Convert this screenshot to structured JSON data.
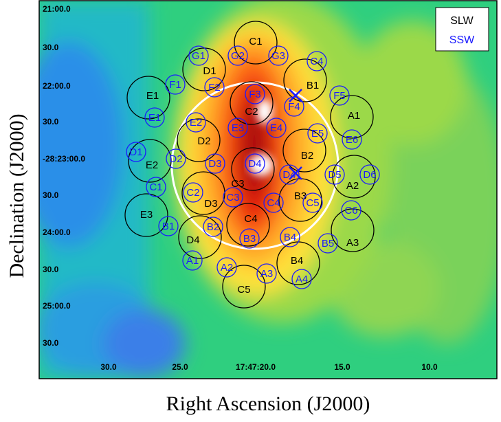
{
  "chart_data": {
    "type": "heatmap",
    "xlabel": "Right Ascension (J2000)",
    "ylabel": "Declination (J2000)",
    "x_ticks": [
      "30.0",
      "25.0",
      "17:47:20.0",
      "15.0",
      "10.0"
    ],
    "y_ticks": [
      "21:00.0",
      "30.0",
      "22:00.0",
      "30.0",
      "-28:23:00.0",
      "30.0",
      "24:00.0",
      "30.0",
      "25:00.0",
      "30.0"
    ],
    "legend": {
      "placement": "top-right",
      "entries": [
        {
          "label": "SLW",
          "color": "#000000"
        },
        {
          "label": "SSW",
          "color": "#1a1aff"
        }
      ]
    },
    "colormap": [
      "#1f6fe0",
      "#17c5c6",
      "#2fd07a",
      "#9bd94a",
      "#ffe23a",
      "#ff8a1a",
      "#e61e0d",
      "#9c0f06",
      "#ffffff"
    ],
    "slw_detectors": [
      "C1",
      "D1",
      "B1",
      "E1",
      "C2",
      "A1",
      "D2",
      "B2",
      "E2",
      "D3",
      "C3",
      "A2",
      "E3",
      "B3",
      "C4",
      "D4",
      "A3",
      "B4",
      "C5"
    ],
    "ssw_detectors": [
      "G1",
      "G2",
      "G3",
      "C4",
      "F1",
      "F2",
      "F3",
      "F5",
      "E1",
      "F4",
      "E2",
      "E3",
      "E4",
      "E5",
      "E6",
      "D1",
      "D2",
      "D3",
      "D4",
      "D4",
      "D5",
      "D6",
      "C1",
      "C2",
      "C3",
      "C4",
      "C5",
      "C6",
      "B1",
      "B2",
      "B3",
      "B4",
      "B5",
      "A1",
      "A2",
      "A3",
      "A4"
    ],
    "markers": [
      "X",
      "X"
    ]
  }
}
